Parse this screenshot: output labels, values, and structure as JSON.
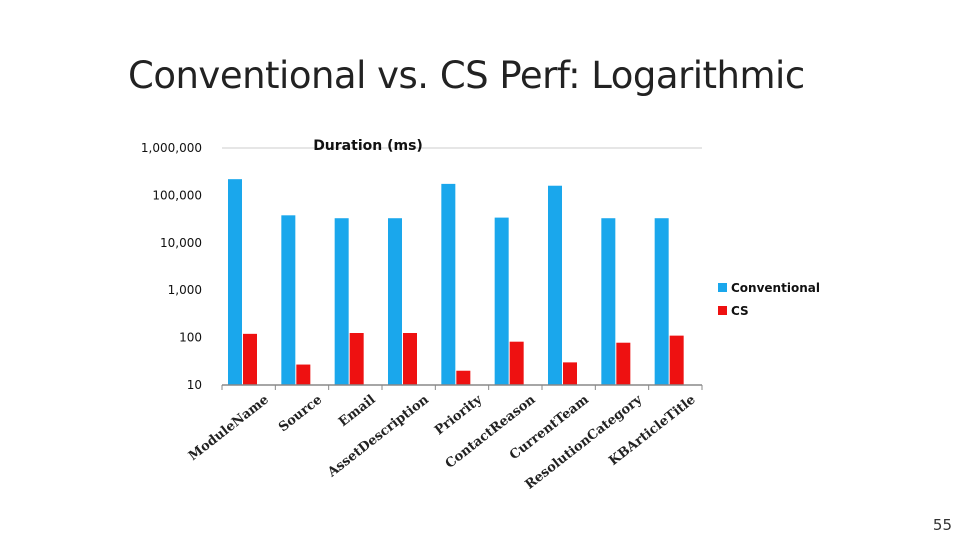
{
  "slide": {
    "title": "Conventional vs. CS Perf: Logarithmic",
    "page_number": "55"
  },
  "colors": {
    "conventional": "#1aa7ec",
    "cs": "#ee1111",
    "axis": "#888888"
  },
  "chart_data": {
    "type": "bar",
    "title": "Duration (ms)",
    "scale": "log",
    "ylim": [
      10,
      1000000
    ],
    "yticks": [
      10,
      100,
      1000,
      10000,
      100000,
      1000000
    ],
    "ytick_labels": [
      "10",
      "100",
      "1,000",
      "10,000",
      "100,000",
      "1,000,000"
    ],
    "categories": [
      "ModuleName",
      "Source",
      "Email",
      "AssetDescription",
      "Priority",
      "ContactReason",
      "CurrentTeam",
      "ResolutionCategory",
      "KBArticleTitle"
    ],
    "series": [
      {
        "name": "Conventional",
        "values": [
          220000,
          38000,
          33000,
          33000,
          175000,
          34000,
          160000,
          33000,
          33000
        ]
      },
      {
        "name": "CS",
        "values": [
          120,
          27,
          125,
          125,
          20,
          82,
          30,
          78,
          110
        ]
      }
    ],
    "legend": {
      "position": "right",
      "entries": [
        "Conventional",
        "CS"
      ]
    }
  }
}
